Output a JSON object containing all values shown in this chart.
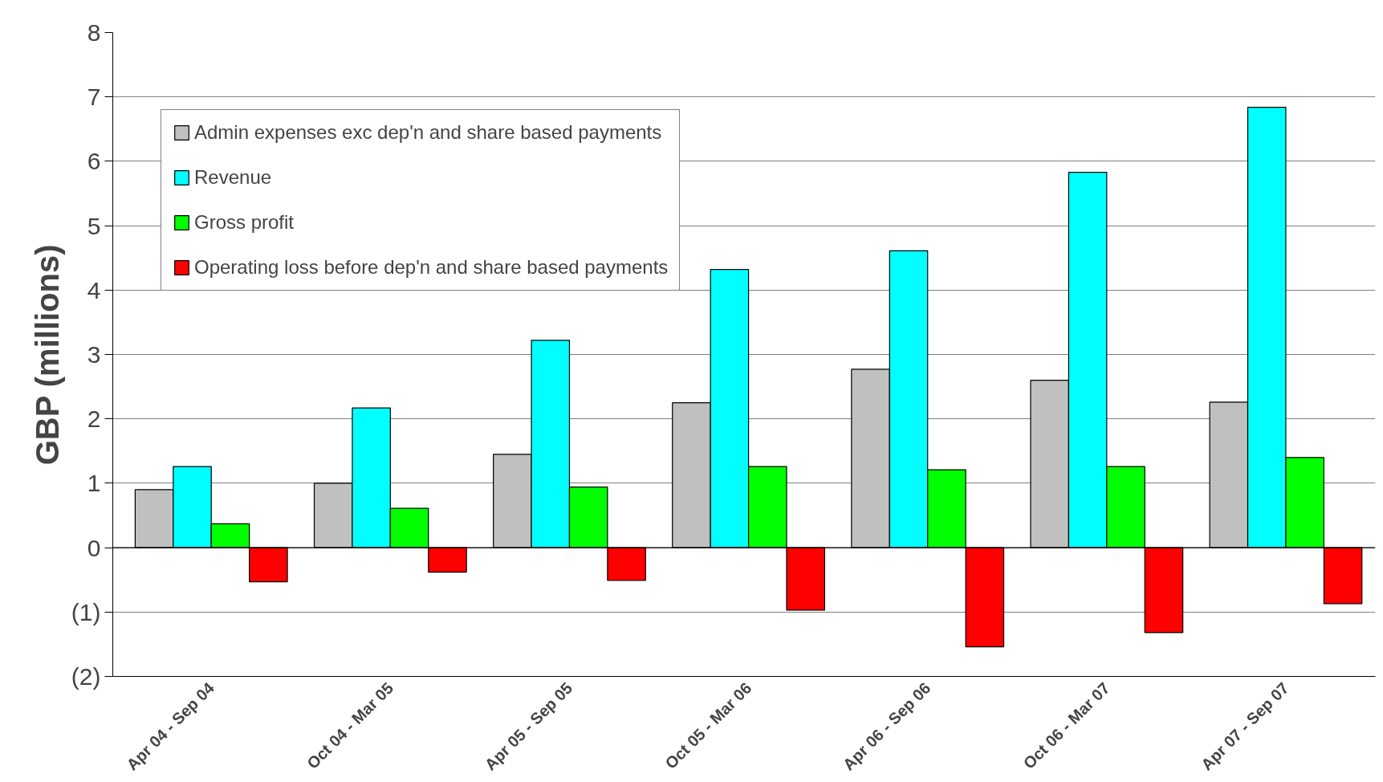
{
  "chart_data": {
    "type": "bar",
    "ylabel": "GBP (millions)",
    "categories": [
      "Apr 04 - Sep 04",
      "Oct 04 - Mar 05",
      "Apr 05 - Sep 05",
      "Oct 05 - Mar 06",
      "Apr 06 - Sep 06",
      "Oct 06 - Mar 07",
      "Apr 07 - Sep 07"
    ],
    "series": [
      {
        "name": "Admin expenses exc dep'n and share based payments",
        "color": "#c0c0c0",
        "values": [
          0.9,
          1.0,
          1.45,
          2.25,
          2.77,
          2.6,
          2.26
        ]
      },
      {
        "name": "Revenue",
        "color": "#00ffff",
        "values": [
          1.26,
          2.17,
          3.22,
          4.32,
          4.61,
          5.83,
          6.84
        ]
      },
      {
        "name": "Gross profit",
        "color": "#00ff00",
        "values": [
          0.37,
          0.61,
          0.94,
          1.26,
          1.21,
          1.26,
          1.4
        ]
      },
      {
        "name": "Operating loss before dep'n and share based payments",
        "color": "#ff0000",
        "values": [
          -0.53,
          -0.38,
          -0.51,
          -0.97,
          -1.54,
          -1.32,
          -0.87
        ]
      }
    ],
    "ylim": [
      -2,
      8
    ],
    "yticks": [
      {
        "value": -2,
        "label": "(2)"
      },
      {
        "value": -1,
        "label": "(1)"
      },
      0,
      1,
      2,
      3,
      4,
      5,
      6,
      7,
      8
    ],
    "grid": "y",
    "legend": "top left"
  }
}
